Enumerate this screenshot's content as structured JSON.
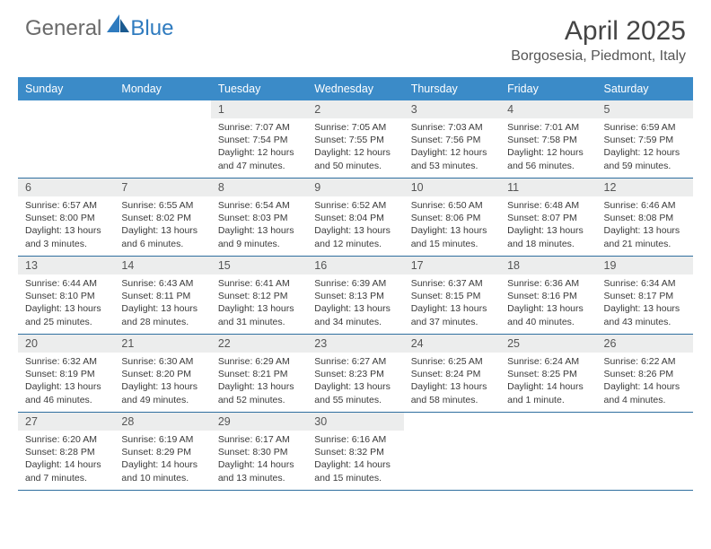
{
  "brand": {
    "part1": "General",
    "part2": "Blue"
  },
  "title": "April 2025",
  "location": "Borgosesia, Piedmont, Italy",
  "colors": {
    "header_bg": "#3b8bc8",
    "header_text": "#ffffff",
    "daynum_bg": "#eceded",
    "rule": "#2f6f9f",
    "logo_gray": "#6a6a6a",
    "logo_blue": "#2f7bbf"
  },
  "day_names": [
    "Sunday",
    "Monday",
    "Tuesday",
    "Wednesday",
    "Thursday",
    "Friday",
    "Saturday"
  ],
  "weeks": [
    [
      {
        "n": ""
      },
      {
        "n": ""
      },
      {
        "n": "1",
        "sr": "Sunrise: 7:07 AM",
        "ss": "Sunset: 7:54 PM",
        "dl1": "Daylight: 12 hours",
        "dl2": "and 47 minutes."
      },
      {
        "n": "2",
        "sr": "Sunrise: 7:05 AM",
        "ss": "Sunset: 7:55 PM",
        "dl1": "Daylight: 12 hours",
        "dl2": "and 50 minutes."
      },
      {
        "n": "3",
        "sr": "Sunrise: 7:03 AM",
        "ss": "Sunset: 7:56 PM",
        "dl1": "Daylight: 12 hours",
        "dl2": "and 53 minutes."
      },
      {
        "n": "4",
        "sr": "Sunrise: 7:01 AM",
        "ss": "Sunset: 7:58 PM",
        "dl1": "Daylight: 12 hours",
        "dl2": "and 56 minutes."
      },
      {
        "n": "5",
        "sr": "Sunrise: 6:59 AM",
        "ss": "Sunset: 7:59 PM",
        "dl1": "Daylight: 12 hours",
        "dl2": "and 59 minutes."
      }
    ],
    [
      {
        "n": "6",
        "sr": "Sunrise: 6:57 AM",
        "ss": "Sunset: 8:00 PM",
        "dl1": "Daylight: 13 hours",
        "dl2": "and 3 minutes."
      },
      {
        "n": "7",
        "sr": "Sunrise: 6:55 AM",
        "ss": "Sunset: 8:02 PM",
        "dl1": "Daylight: 13 hours",
        "dl2": "and 6 minutes."
      },
      {
        "n": "8",
        "sr": "Sunrise: 6:54 AM",
        "ss": "Sunset: 8:03 PM",
        "dl1": "Daylight: 13 hours",
        "dl2": "and 9 minutes."
      },
      {
        "n": "9",
        "sr": "Sunrise: 6:52 AM",
        "ss": "Sunset: 8:04 PM",
        "dl1": "Daylight: 13 hours",
        "dl2": "and 12 minutes."
      },
      {
        "n": "10",
        "sr": "Sunrise: 6:50 AM",
        "ss": "Sunset: 8:06 PM",
        "dl1": "Daylight: 13 hours",
        "dl2": "and 15 minutes."
      },
      {
        "n": "11",
        "sr": "Sunrise: 6:48 AM",
        "ss": "Sunset: 8:07 PM",
        "dl1": "Daylight: 13 hours",
        "dl2": "and 18 minutes."
      },
      {
        "n": "12",
        "sr": "Sunrise: 6:46 AM",
        "ss": "Sunset: 8:08 PM",
        "dl1": "Daylight: 13 hours",
        "dl2": "and 21 minutes."
      }
    ],
    [
      {
        "n": "13",
        "sr": "Sunrise: 6:44 AM",
        "ss": "Sunset: 8:10 PM",
        "dl1": "Daylight: 13 hours",
        "dl2": "and 25 minutes."
      },
      {
        "n": "14",
        "sr": "Sunrise: 6:43 AM",
        "ss": "Sunset: 8:11 PM",
        "dl1": "Daylight: 13 hours",
        "dl2": "and 28 minutes."
      },
      {
        "n": "15",
        "sr": "Sunrise: 6:41 AM",
        "ss": "Sunset: 8:12 PM",
        "dl1": "Daylight: 13 hours",
        "dl2": "and 31 minutes."
      },
      {
        "n": "16",
        "sr": "Sunrise: 6:39 AM",
        "ss": "Sunset: 8:13 PM",
        "dl1": "Daylight: 13 hours",
        "dl2": "and 34 minutes."
      },
      {
        "n": "17",
        "sr": "Sunrise: 6:37 AM",
        "ss": "Sunset: 8:15 PM",
        "dl1": "Daylight: 13 hours",
        "dl2": "and 37 minutes."
      },
      {
        "n": "18",
        "sr": "Sunrise: 6:36 AM",
        "ss": "Sunset: 8:16 PM",
        "dl1": "Daylight: 13 hours",
        "dl2": "and 40 minutes."
      },
      {
        "n": "19",
        "sr": "Sunrise: 6:34 AM",
        "ss": "Sunset: 8:17 PM",
        "dl1": "Daylight: 13 hours",
        "dl2": "and 43 minutes."
      }
    ],
    [
      {
        "n": "20",
        "sr": "Sunrise: 6:32 AM",
        "ss": "Sunset: 8:19 PM",
        "dl1": "Daylight: 13 hours",
        "dl2": "and 46 minutes."
      },
      {
        "n": "21",
        "sr": "Sunrise: 6:30 AM",
        "ss": "Sunset: 8:20 PM",
        "dl1": "Daylight: 13 hours",
        "dl2": "and 49 minutes."
      },
      {
        "n": "22",
        "sr": "Sunrise: 6:29 AM",
        "ss": "Sunset: 8:21 PM",
        "dl1": "Daylight: 13 hours",
        "dl2": "and 52 minutes."
      },
      {
        "n": "23",
        "sr": "Sunrise: 6:27 AM",
        "ss": "Sunset: 8:23 PM",
        "dl1": "Daylight: 13 hours",
        "dl2": "and 55 minutes."
      },
      {
        "n": "24",
        "sr": "Sunrise: 6:25 AM",
        "ss": "Sunset: 8:24 PM",
        "dl1": "Daylight: 13 hours",
        "dl2": "and 58 minutes."
      },
      {
        "n": "25",
        "sr": "Sunrise: 6:24 AM",
        "ss": "Sunset: 8:25 PM",
        "dl1": "Daylight: 14 hours",
        "dl2": "and 1 minute."
      },
      {
        "n": "26",
        "sr": "Sunrise: 6:22 AM",
        "ss": "Sunset: 8:26 PM",
        "dl1": "Daylight: 14 hours",
        "dl2": "and 4 minutes."
      }
    ],
    [
      {
        "n": "27",
        "sr": "Sunrise: 6:20 AM",
        "ss": "Sunset: 8:28 PM",
        "dl1": "Daylight: 14 hours",
        "dl2": "and 7 minutes."
      },
      {
        "n": "28",
        "sr": "Sunrise: 6:19 AM",
        "ss": "Sunset: 8:29 PM",
        "dl1": "Daylight: 14 hours",
        "dl2": "and 10 minutes."
      },
      {
        "n": "29",
        "sr": "Sunrise: 6:17 AM",
        "ss": "Sunset: 8:30 PM",
        "dl1": "Daylight: 14 hours",
        "dl2": "and 13 minutes."
      },
      {
        "n": "30",
        "sr": "Sunrise: 6:16 AM",
        "ss": "Sunset: 8:32 PM",
        "dl1": "Daylight: 14 hours",
        "dl2": "and 15 minutes."
      },
      {
        "n": ""
      },
      {
        "n": ""
      },
      {
        "n": ""
      }
    ]
  ]
}
